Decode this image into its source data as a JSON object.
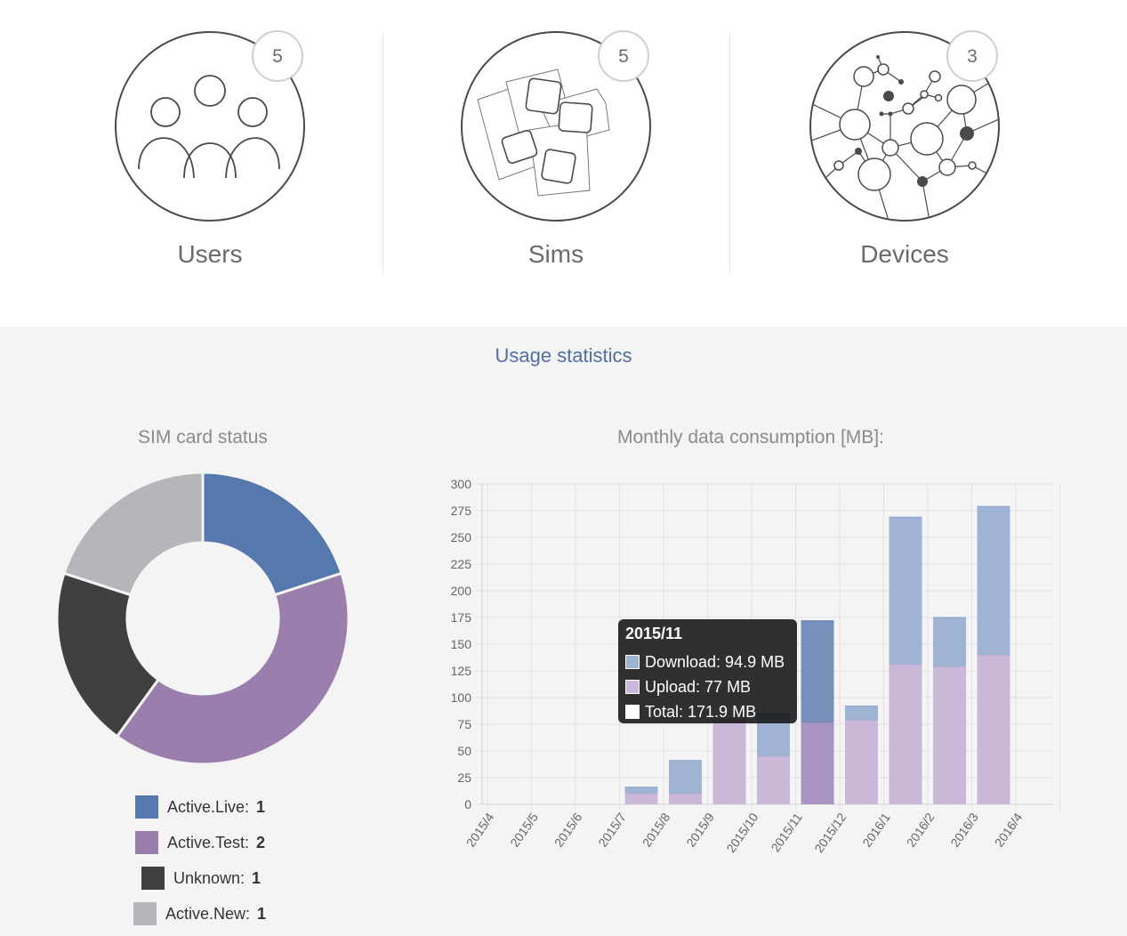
{
  "summary": {
    "users": {
      "label": "Users",
      "count": "5"
    },
    "sims": {
      "label": "Sims",
      "count": "5"
    },
    "devices": {
      "label": "Devices",
      "count": "3"
    }
  },
  "usage": {
    "title": "Usage statistics"
  },
  "sim_status": {
    "title": "SIM card status",
    "legend": [
      {
        "label": "Active.Live:",
        "value": "1",
        "color": "#5578ad"
      },
      {
        "label": "Active.Test:",
        "value": "2",
        "color": "#9a7fae"
      },
      {
        "label": "Unknown:",
        "value": "1",
        "color": "#404040"
      },
      {
        "label": "Active.New:",
        "value": "1",
        "color": "#b5b6b9"
      }
    ]
  },
  "monthly": {
    "title": "Monthly data consumption [MB]:",
    "tooltip": {
      "title": "2015/11",
      "download": "Download: 94.9 MB",
      "upload": "Upload: 77 MB",
      "total": "Total: 171.9 MB"
    }
  },
  "chart_data": [
    {
      "type": "pie",
      "title": "SIM card status",
      "categories": [
        "Active.Live",
        "Active.Test",
        "Unknown",
        "Active.New"
      ],
      "values": [
        1,
        2,
        1,
        1
      ],
      "colors": [
        "#5578ad",
        "#9a7fae",
        "#404040",
        "#b5b6b9"
      ]
    },
    {
      "type": "bar",
      "title": "Monthly data consumption [MB]:",
      "stacked": true,
      "categories": [
        "2015/4",
        "2015/5",
        "2015/6",
        "2015/7",
        "2015/8",
        "2015/9",
        "2015/10",
        "2015/11",
        "2015/12",
        "2016/1",
        "2016/2",
        "2016/3",
        "2016/4"
      ],
      "series": [
        {
          "name": "Upload",
          "color": "#cbb8d8",
          "values": [
            0,
            0,
            0,
            10,
            10,
            80,
            45,
            77,
            79,
            131,
            129,
            140,
            0
          ]
        },
        {
          "name": "Download",
          "color": "#9fb3d4",
          "values": [
            0,
            0,
            0,
            6,
            31,
            0,
            40,
            94.9,
            13,
            138,
            46,
            139,
            0
          ]
        }
      ],
      "highlight_category": "2015/11",
      "ylim": [
        0,
        300
      ],
      "yticks": [
        0,
        25,
        50,
        75,
        100,
        125,
        150,
        175,
        200,
        225,
        250,
        275,
        300
      ],
      "grid": true
    }
  ]
}
